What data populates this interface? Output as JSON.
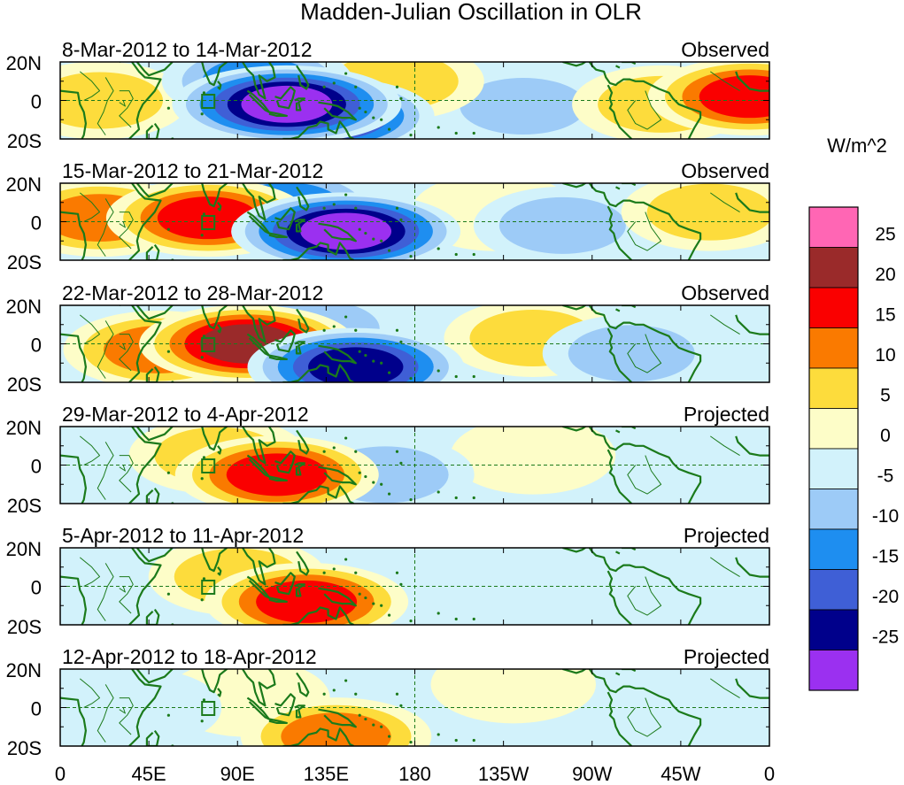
{
  "chart_data": {
    "type": "heatmap",
    "title": "Madden-Julian Oscillation in OLR",
    "colorbar": {
      "unit_label": "W/m^2",
      "levels": [
        -30,
        -25,
        -20,
        -15,
        -10,
        -5,
        0,
        5,
        10,
        15,
        20,
        25,
        30
      ],
      "tick_labels": [
        "25",
        "20",
        "15",
        "10",
        "5",
        "0",
        "-5",
        "-10",
        "-15",
        "-20",
        "-25"
      ],
      "colors": [
        "#9b30f0",
        "#00008b",
        "#3f5fd6",
        "#1e8ef0",
        "#9dcbf7",
        "#d2f2fb",
        "#fdfdc8",
        "#fddc3c",
        "#fa7a00",
        "#fa0000",
        "#9a2a2a",
        "#ff66b4"
      ]
    },
    "x_axis": {
      "tick_labels": [
        "0",
        "45E",
        "90E",
        "135E",
        "180",
        "135W",
        "90W",
        "45W",
        "0"
      ],
      "range_deg_east": [
        0,
        360
      ]
    },
    "y_axis": {
      "tick_labels": [
        "20N",
        "0",
        "20S"
      ],
      "range": [
        -20,
        20
      ]
    },
    "panels": [
      {
        "period": "8-Mar-2012 to 14-Mar-2012",
        "status": "Observed",
        "anomalies": [
          {
            "lon": 115,
            "lat": -2,
            "value": -30
          },
          {
            "lon": 135,
            "lat": -8,
            "value": -25
          },
          {
            "lon": 100,
            "lat": 10,
            "value": -15
          },
          {
            "lon": 235,
            "lat": -3,
            "value": -10
          },
          {
            "lon": 20,
            "lat": 0,
            "value": 10
          },
          {
            "lon": 350,
            "lat": 2,
            "value": 20
          },
          {
            "lon": 170,
            "lat": 10,
            "value": 10
          },
          {
            "lon": 305,
            "lat": -2,
            "value": 10
          }
        ]
      },
      {
        "period": "15-Mar-2012 to 21-Mar-2012",
        "status": "Observed",
        "anomalies": [
          {
            "lon": 145,
            "lat": -5,
            "value": -30
          },
          {
            "lon": 115,
            "lat": 8,
            "value": -15
          },
          {
            "lon": 255,
            "lat": -2,
            "value": -10
          },
          {
            "lon": 20,
            "lat": 2,
            "value": 15
          },
          {
            "lon": 75,
            "lat": 2,
            "value": 20
          },
          {
            "lon": 330,
            "lat": 5,
            "value": 10
          },
          {
            "lon": 220,
            "lat": 5,
            "value": 5
          }
        ]
      },
      {
        "period": "22-Mar-2012 to 28-Mar-2012",
        "status": "Observed",
        "anomalies": [
          {
            "lon": 95,
            "lat": 0,
            "value": 25
          },
          {
            "lon": 50,
            "lat": -3,
            "value": 15
          },
          {
            "lon": 150,
            "lat": -12,
            "value": -25
          },
          {
            "lon": 130,
            "lat": 8,
            "value": -10
          },
          {
            "lon": 240,
            "lat": 3,
            "value": 10
          },
          {
            "lon": 290,
            "lat": -5,
            "value": -10
          }
        ]
      },
      {
        "period": "29-Mar-2012 to 4-Apr-2012",
        "status": "Projected",
        "anomalies": [
          {
            "lon": 110,
            "lat": -5,
            "value": 20
          },
          {
            "lon": 80,
            "lat": 5,
            "value": 10
          },
          {
            "lon": 165,
            "lat": -5,
            "value": -10
          },
          {
            "lon": 240,
            "lat": 5,
            "value": 5
          },
          {
            "lon": 50,
            "lat": -8,
            "value": -5
          }
        ]
      },
      {
        "period": "5-Apr-2012 to 11-Apr-2012",
        "status": "Projected",
        "anomalies": [
          {
            "lon": 125,
            "lat": -8,
            "value": 20
          },
          {
            "lon": 90,
            "lat": 5,
            "value": 10
          },
          {
            "lon": 30,
            "lat": 0,
            "value": -5
          },
          {
            "lon": 230,
            "lat": -2,
            "value": -5
          }
        ]
      },
      {
        "period": "12-Apr-2012 to 18-Apr-2012",
        "status": "Projected",
        "anomalies": [
          {
            "lon": 140,
            "lat": -15,
            "value": 15
          },
          {
            "lon": 95,
            "lat": 5,
            "value": 5
          },
          {
            "lon": 40,
            "lat": 0,
            "value": -5
          },
          {
            "lon": 230,
            "lat": 12,
            "value": 5
          }
        ]
      }
    ]
  }
}
